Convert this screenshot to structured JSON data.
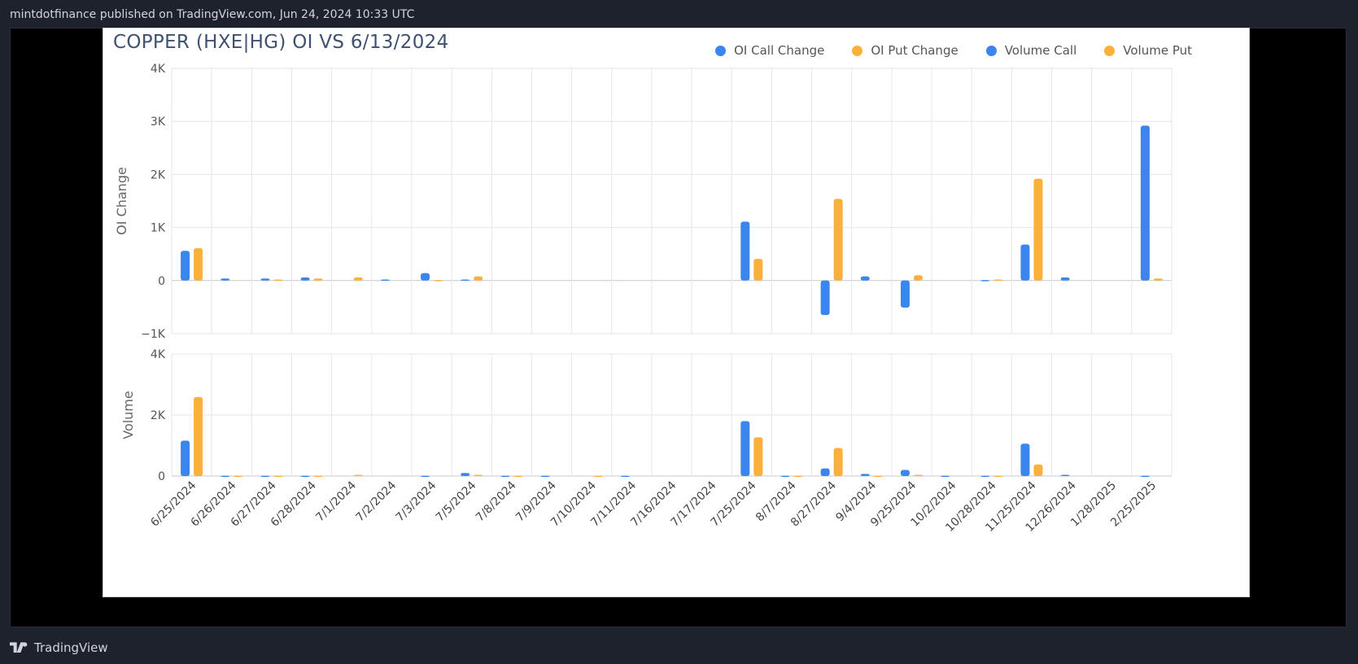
{
  "header": {
    "text": "mintdotfinance published on TradingView.com, Jun 24, 2024 10:33 UTC"
  },
  "footer": {
    "brand": "TradingView"
  },
  "colors": {
    "call": "#3b86ee",
    "put": "#fbb03b"
  },
  "chart_data": {
    "type": "bar",
    "title": "COPPER (HXE|HG) OI VS 6/13/2024",
    "categories": [
      "6/25/2024",
      "6/26/2024",
      "6/27/2024",
      "6/28/2024",
      "7/1/2024",
      "7/2/2024",
      "7/3/2024",
      "7/5/2024",
      "7/8/2024",
      "7/9/2024",
      "7/10/2024",
      "7/11/2024",
      "7/16/2024",
      "7/17/2024",
      "7/25/2024",
      "8/7/2024",
      "8/27/2024",
      "9/4/2024",
      "9/25/2024",
      "10/2/2024",
      "10/28/2024",
      "11/25/2024",
      "12/26/2024",
      "1/28/2025",
      "2/25/2025"
    ],
    "legend": [
      "OI Call Change",
      "OI Put Change",
      "Volume Call",
      "Volume Put"
    ],
    "legend_placement": "top-right",
    "grid": true,
    "panels": [
      {
        "ylabel": "OI Change",
        "ylim": [
          -1000,
          4000
        ],
        "yticks": [
          -1000,
          0,
          1000,
          2000,
          3000,
          4000
        ],
        "ytick_labels": [
          "−1K",
          "0",
          "1K",
          "2K",
          "3K",
          "4K"
        ],
        "series": [
          {
            "name": "OI Call Change",
            "values": [
              560,
              40,
              40,
              60,
              0,
              20,
              140,
              20,
              0,
              0,
              0,
              0,
              0,
              0,
              1110,
              0,
              -650,
              80,
              -510,
              0,
              10,
              680,
              60,
              0,
              2920
            ]
          },
          {
            "name": "OI Put Change",
            "values": [
              610,
              0,
              20,
              40,
              60,
              0,
              10,
              80,
              0,
              0,
              0,
              0,
              0,
              0,
              410,
              0,
              1540,
              0,
              100,
              0,
              20,
              1920,
              0,
              0,
              40
            ]
          }
        ]
      },
      {
        "ylabel": "Volume",
        "ylim": [
          0,
          4000
        ],
        "yticks": [
          0,
          2000,
          4000
        ],
        "ytick_labels": [
          "0",
          "2K",
          "4K"
        ],
        "series": [
          {
            "name": "Volume Call",
            "values": [
              1160,
              10,
              10,
              10,
              0,
              0,
              10,
              100,
              10,
              10,
              0,
              10,
              0,
              0,
              1800,
              10,
              250,
              70,
              200,
              10,
              10,
              1060,
              40,
              0,
              10
            ]
          },
          {
            "name": "Volume Put",
            "values": [
              2590,
              10,
              10,
              10,
              40,
              0,
              0,
              40,
              10,
              0,
              10,
              0,
              0,
              0,
              1270,
              10,
              920,
              10,
              40,
              0,
              10,
              380,
              0,
              0,
              0
            ]
          }
        ]
      }
    ]
  }
}
